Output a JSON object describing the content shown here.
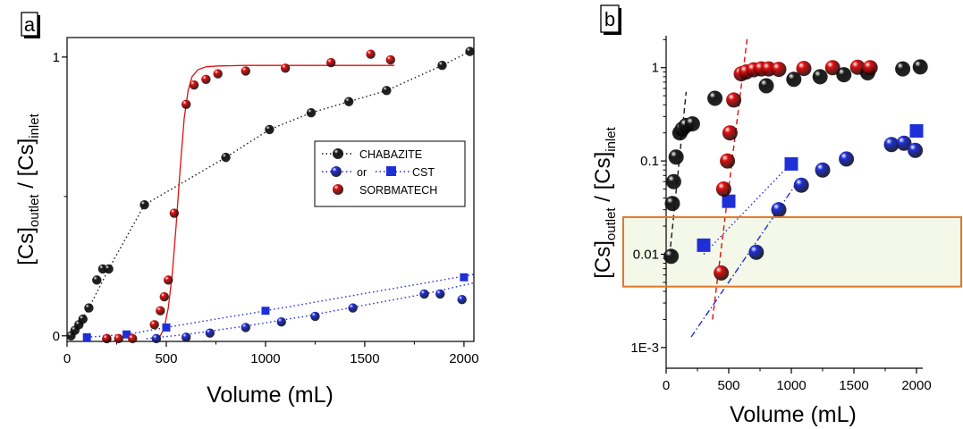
{
  "colors": {
    "chabazite": "#1a1a1a",
    "cst": "#1f2fd8",
    "sorbmatech": "#e01010",
    "box": "#e07828",
    "box_fill": "#f4f8e8"
  },
  "chart_data": [
    {
      "type": "scatter",
      "panel_label": "a",
      "xlabel": "Volume (mL)",
      "ylabel_parts": [
        "[Cs]",
        "outlet",
        " / [Cs]",
        "inlet"
      ],
      "xlim": [
        0,
        2050
      ],
      "ylim": [
        -0.02,
        1.07
      ],
      "xticks": [
        0,
        500,
        1000,
        1500,
        2000
      ],
      "yticks": [
        0,
        1
      ],
      "legend": {
        "placement": "center-right",
        "entries": [
          {
            "label": "CHABAZITE",
            "marker": "ball",
            "color": "chabazite",
            "line": "dotted"
          },
          {
            "label_prefix": "or",
            "label": "CST",
            "marker": "ball+square",
            "color": "cst",
            "line": "dotted"
          },
          {
            "label": "SORBMATECH",
            "marker": "ball",
            "color": "sorbmatech",
            "line": "none"
          }
        ]
      },
      "series": [
        {
          "name": "CHABAZITE",
          "marker": "ball",
          "color": "chabazite",
          "x": [
            20,
            40,
            60,
            80,
            110,
            150,
            180,
            210,
            390,
            800,
            1020,
            1230,
            1420,
            1610,
            1890,
            2030
          ],
          "y": [
            0.0,
            0.02,
            0.04,
            0.06,
            0.1,
            0.2,
            0.24,
            0.24,
            0.47,
            0.64,
            0.74,
            0.8,
            0.84,
            0.88,
            0.97,
            1.02
          ],
          "fit": {
            "style": "dotted",
            "x": [
              0,
              20,
              60,
              110,
              210,
              390,
              800,
              1020,
              1230,
              1420,
              1610,
              1890,
              2030
            ],
            "y": [
              0.0,
              0.0,
              0.04,
              0.1,
              0.24,
              0.47,
              0.64,
              0.74,
              0.8,
              0.84,
              0.88,
              0.97,
              1.02
            ]
          }
        },
        {
          "name": "CST",
          "marker": "square",
          "color": "cst",
          "x": [
            100,
            300,
            500,
            1000,
            2000
          ],
          "y": [
            -0.005,
            0.005,
            0.03,
            0.09,
            0.21
          ],
          "fit": {
            "style": "dotted",
            "x": [
              100,
              300,
              500,
              1000,
              2050
            ],
            "y": [
              -0.005,
              0.005,
              0.03,
              0.09,
              0.22
            ]
          }
        },
        {
          "name": "CST",
          "marker": "ball",
          "color": "cst",
          "x": [
            200,
            450,
            600,
            720,
            900,
            1080,
            1250,
            1440,
            1800,
            1880,
            1990
          ],
          "y": [
            -0.01,
            -0.01,
            -0.005,
            0.01,
            0.03,
            0.05,
            0.07,
            0.1,
            0.15,
            0.15,
            0.13
          ],
          "fit": {
            "style": "dotted",
            "x": [
              400,
              600,
              900,
              1200,
              1500,
              1800,
              2050
            ],
            "y": [
              -0.01,
              0.005,
              0.035,
              0.07,
              0.11,
              0.15,
              0.19
            ]
          }
        },
        {
          "name": "SORBMATECH",
          "marker": "ball",
          "color": "sorbmatech",
          "x": [
            200,
            260,
            330,
            440,
            470,
            490,
            510,
            540,
            600,
            640,
            700,
            760,
            900,
            1100,
            1330,
            1530,
            1630
          ],
          "y": [
            -0.01,
            -0.01,
            -0.01,
            0.04,
            0.09,
            0.14,
            0.2,
            0.44,
            0.83,
            0.9,
            0.92,
            0.94,
            0.95,
            0.96,
            0.98,
            1.01,
            0.99
          ],
          "fit": {
            "style": "solid",
            "x": [
              450,
              470,
              490,
              510,
              530,
              550,
              570,
              590,
              610,
              630,
              660,
              700,
              760,
              900,
              1650
            ],
            "y": [
              -0.01,
              0.0,
              0.03,
              0.1,
              0.22,
              0.4,
              0.6,
              0.78,
              0.88,
              0.93,
              0.955,
              0.965,
              0.968,
              0.97,
              0.97
            ]
          }
        }
      ]
    },
    {
      "type": "scatter",
      "panel_label": "b",
      "xlabel": "Volume (mL)",
      "ylabel_parts": [
        "[Cs]",
        "outlet",
        " / [Cs]",
        "inlet"
      ],
      "yscale": "log",
      "xlim": [
        0,
        2050
      ],
      "ylim": [
        0.0006,
        2.2
      ],
      "xticks": [
        0,
        500,
        1000,
        1500,
        2000
      ],
      "yticks": [
        0.001,
        0.01,
        0.1,
        1
      ],
      "ytick_labels": [
        "1E-3",
        "0.01",
        "0.1",
        "1"
      ],
      "highlight_band": {
        "ymin": 0.0045,
        "ymax": 0.025
      },
      "series": [
        {
          "name": "CHABAZITE",
          "marker": "ball",
          "color": "chabazite",
          "x": [
            40,
            50,
            60,
            80,
            110,
            130,
            160,
            210,
            390,
            800,
            1020,
            1230,
            1420,
            1610,
            1890,
            2030
          ],
          "y": [
            0.0095,
            0.035,
            0.06,
            0.11,
            0.2,
            0.22,
            0.24,
            0.25,
            0.47,
            0.64,
            0.75,
            0.8,
            0.84,
            0.88,
            0.97,
            1.02
          ],
          "fit": {
            "style": "dashed",
            "x": [
              35,
              160
            ],
            "y": [
              0.012,
              0.55
            ]
          }
        },
        {
          "name": "CST",
          "marker": "square",
          "color": "cst",
          "x": [
            300,
            500,
            1000,
            2000
          ],
          "y": [
            0.0125,
            0.037,
            0.093,
            0.21
          ],
          "fit": {
            "style": "dotted",
            "x": [
              300,
              1000
            ],
            "y": [
              0.01,
              0.095
            ]
          }
        },
        {
          "name": "CST",
          "marker": "ball",
          "color": "cst",
          "x": [
            720,
            900,
            1080,
            1250,
            1440,
            1800,
            1900,
            1990
          ],
          "y": [
            0.0105,
            0.03,
            0.055,
            0.08,
            0.105,
            0.15,
            0.155,
            0.13
          ],
          "fit": {
            "style": "dashdot",
            "x": [
              200,
              1050
            ],
            "y": [
              0.0013,
              0.06
            ]
          }
        },
        {
          "name": "SORBMATECH",
          "marker": "ball",
          "color": "sorbmatech",
          "x": [
            440,
            460,
            490,
            510,
            540,
            600,
            640,
            700,
            760,
            820,
            900,
            1100,
            1330,
            1530,
            1630
          ],
          "y": [
            0.0063,
            0.05,
            0.1,
            0.2,
            0.45,
            0.86,
            0.9,
            0.95,
            0.97,
            0.97,
            0.96,
            0.98,
            1.0,
            1.01,
            1.0
          ],
          "fit": {
            "style": "dashed",
            "x": [
              370,
              650
            ],
            "y": [
              0.002,
              2.2
            ]
          }
        }
      ]
    }
  ]
}
